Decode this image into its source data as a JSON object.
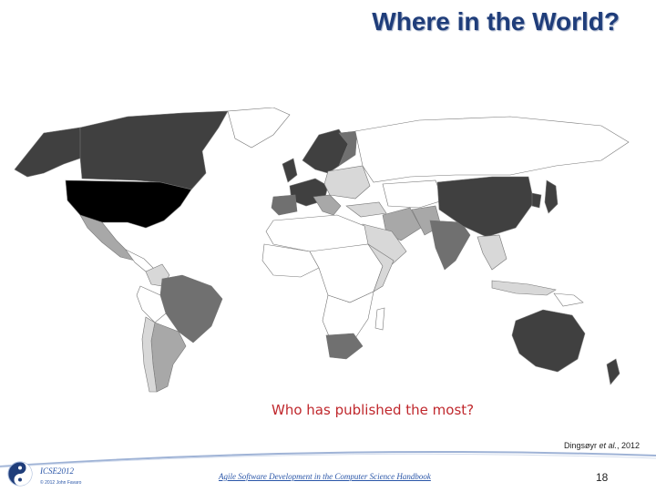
{
  "slide": {
    "title": "Where in the World?",
    "question": "Who has published the most?",
    "citation_author": "Dingsøyr ",
    "citation_etal": "et al.",
    "citation_year": ", 2012",
    "footer_conference": "ICSE2012",
    "footer_copyright": "© 2012 John Favaro",
    "footer_book": "Agile Software Development in the Computer Science Handbook",
    "page_number": "18"
  },
  "map": {
    "shade_legend": {
      "most": "#000000",
      "high": "#404040",
      "medium": "#707070",
      "low": "#a8a8a8",
      "minimal": "#d8d8d8",
      "none": "#ffffff"
    }
  }
}
